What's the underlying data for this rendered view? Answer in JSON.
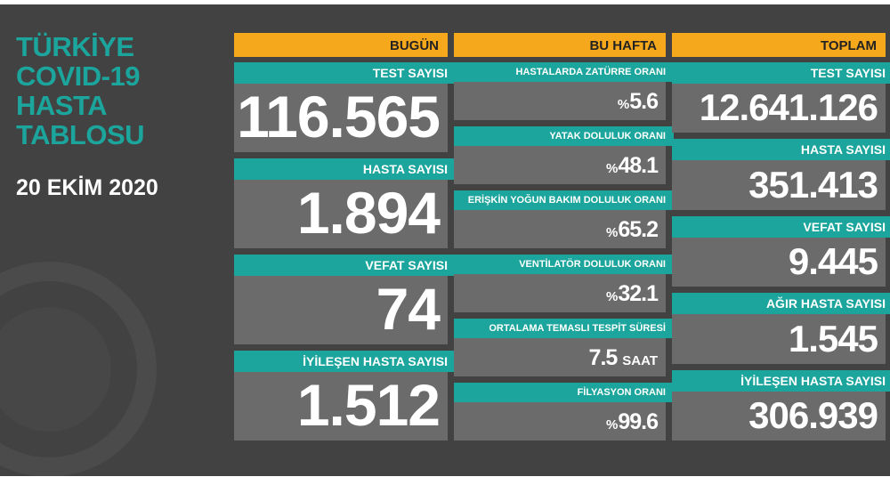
{
  "header": {
    "title_lines": [
      "TÜRKİYE",
      "COVID-19",
      "HASTA",
      "TABLOSU"
    ],
    "date": "20 EKİM 2020"
  },
  "columns": [
    {
      "title": "BUGÜN",
      "cards": [
        {
          "label": "TEST SAYISI",
          "value": "116.565"
        },
        {
          "label": "HASTA SAYISI",
          "value": "1.894"
        },
        {
          "label": "VEFAT SAYISI",
          "value": "74"
        },
        {
          "label": "İYİLEŞEN HASTA SAYISI",
          "value": "1.512"
        }
      ]
    },
    {
      "title": "BU HAFTA",
      "cards": [
        {
          "label": "HASTALARDA ZATÜRRE ORANI",
          "prefix": "%",
          "value": "5.6"
        },
        {
          "label": "YATAK DOLULUK ORANI",
          "prefix": "%",
          "value": "48.1"
        },
        {
          "label": "ERİŞKİN YOĞUN BAKIM DOLULUK ORANI",
          "prefix": "%",
          "value": "65.2"
        },
        {
          "label": "VENTİLATÖR DOLULUK ORANI",
          "prefix": "%",
          "value": "32.1"
        },
        {
          "label": "ORTALAMA TEMASLI TESPİT SÜRESİ",
          "value": "7.5",
          "unit": "SAAT"
        },
        {
          "label": "FİLYASYON ORANI",
          "prefix": "%",
          "value": "99.6"
        }
      ]
    },
    {
      "title": "TOPLAM",
      "cards": [
        {
          "label": "TEST SAYISI",
          "value": "12.641.126"
        },
        {
          "label": "HASTA SAYISI",
          "value": "351.413"
        },
        {
          "label": "VEFAT SAYISI",
          "value": "9.445"
        },
        {
          "label": "AĞIR HASTA SAYISI",
          "value": "1.545"
        },
        {
          "label": "İYİLEŞEN HASTA SAYISI",
          "value": "306.939"
        }
      ]
    }
  ]
}
